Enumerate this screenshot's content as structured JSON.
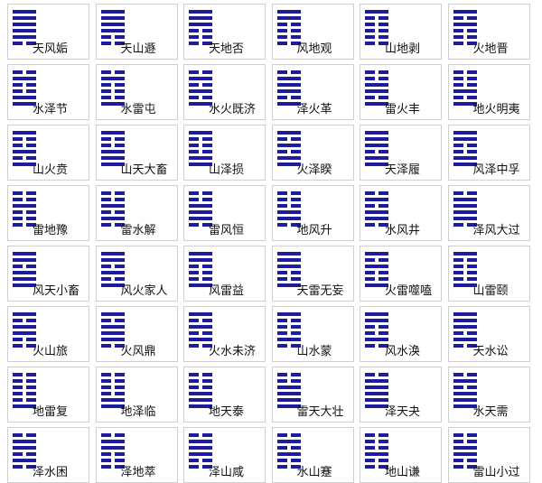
{
  "rows": [
    [
      "天风姤",
      "天山遯",
      "天地否",
      "风地观",
      "山地剥",
      "火地晋"
    ],
    [
      "水泽节",
      "水雷屯",
      "水火既济",
      "泽火革",
      "雷火丰",
      "地火明夷"
    ],
    [
      "山火贲",
      "山天大畜",
      "山泽损",
      "火泽睽",
      "天泽履",
      "风泽中孚"
    ],
    [
      "雷地豫",
      "雷水解",
      "雷风恒",
      "地风升",
      "水风井",
      "泽风大过"
    ],
    [
      "风天小畜",
      "风火家人",
      "风雷益",
      "天雷无妄",
      "火雷噬嗑",
      "山雷颐"
    ],
    [
      "火山旅",
      "火风鼎",
      "火水未济",
      "山水蒙",
      "风水涣",
      "天水讼"
    ],
    [
      "地雷复",
      "地泽临",
      "地天泰",
      "雷天大壮",
      "泽天夬",
      "水天需"
    ],
    [
      "泽水困",
      "泽地萃",
      "泽山咸",
      "水山蹇",
      "地山谦",
      "雷山小过"
    ]
  ]
}
